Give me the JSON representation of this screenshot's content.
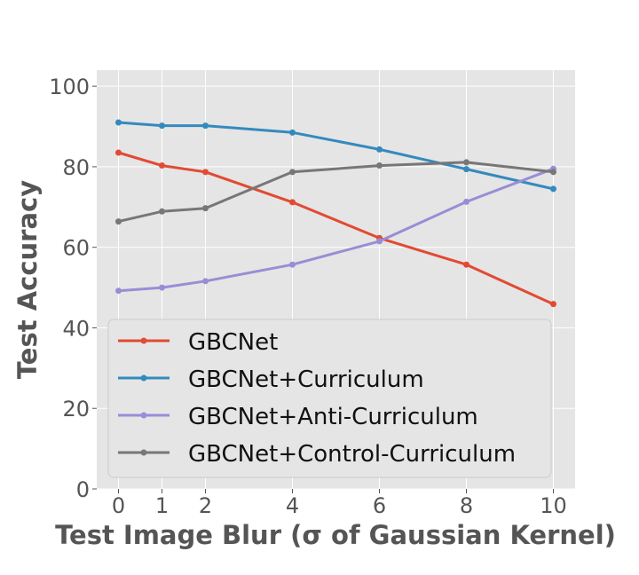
{
  "chart_data": {
    "type": "line",
    "title": "",
    "xlabel": "Test Image Blur (σ of Gaussian Kernel)",
    "ylabel": "Test Accuracy",
    "x": [
      0,
      1,
      2,
      4,
      6,
      8,
      10
    ],
    "x_ticks": [
      "0",
      "1",
      "2",
      "4",
      "6",
      "8",
      "10"
    ],
    "y_ticks": [
      "0",
      "20",
      "40",
      "60",
      "80",
      "100"
    ],
    "xlim": [
      -0.5,
      10.5
    ],
    "ylim": [
      0,
      104
    ],
    "grid": true,
    "legend_position": "lower-left",
    "series": [
      {
        "name": "GBCNet",
        "color": "#e24a33",
        "values": [
          83.5,
          80.3,
          78.7,
          71.2,
          62.3,
          55.7,
          45.9
        ]
      },
      {
        "name": "GBCNet+Curriculum",
        "color": "#348abd",
        "values": [
          91.0,
          90.2,
          90.2,
          88.5,
          84.3,
          79.4,
          74.5
        ]
      },
      {
        "name": "GBCNet+Anti-Curriculum",
        "color": "#988ed5",
        "values": [
          49.2,
          50.0,
          51.6,
          55.7,
          61.5,
          71.3,
          79.5
        ]
      },
      {
        "name": "GBCNet+Control-Curriculum",
        "color": "#777777",
        "values": [
          66.4,
          68.9,
          69.7,
          78.7,
          80.3,
          81.1,
          78.7
        ]
      }
    ]
  }
}
